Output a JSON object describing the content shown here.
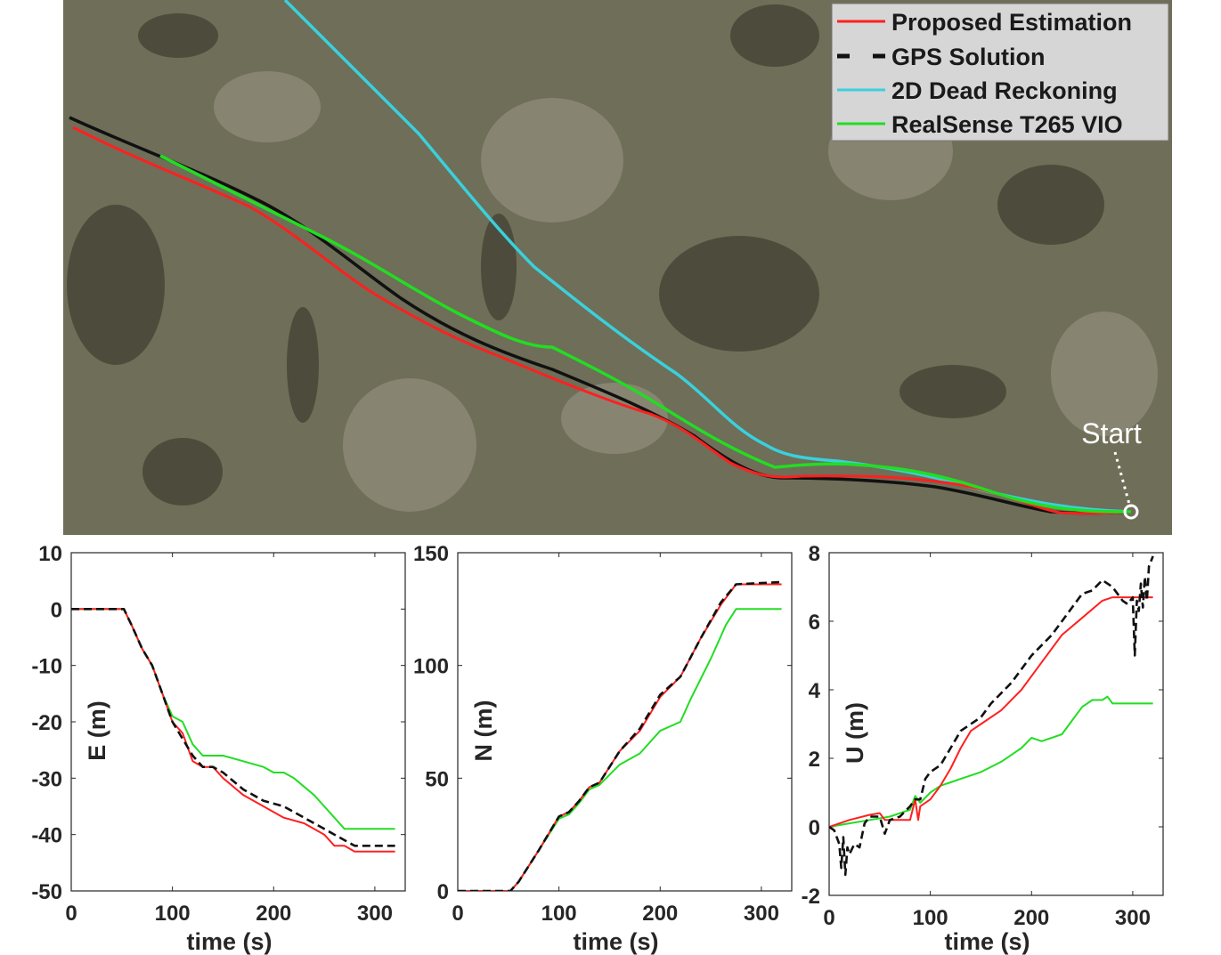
{
  "colors": {
    "proposed": "#ff2020",
    "gps": "#111111",
    "dead_reckoning": "#3ad0dc",
    "vio": "#22dd22",
    "terrain_base": "#6f6e58",
    "terrain_dark": "#3e3d30",
    "terrain_light": "#9a9987"
  },
  "map": {
    "start_label": "Start",
    "legend": [
      {
        "label": "Proposed Estimation",
        "series": "proposed"
      },
      {
        "label": "GPS Solution",
        "series": "gps"
      },
      {
        "label": "2D Dead Reckoning",
        "series": "dead_reckoning"
      },
      {
        "label": "RealSense T265 VIO",
        "series": "vio"
      }
    ]
  },
  "chart_data": [
    {
      "type": "line",
      "title": "",
      "xlabel": "time (s)",
      "ylabel": "E (m)",
      "xlim": [
        0,
        330
      ],
      "ylim": [
        -50,
        10
      ],
      "xticks": [
        0,
        100,
        200,
        300
      ],
      "yticks": [
        10,
        0,
        -10,
        -20,
        -30,
        -40,
        -50
      ],
      "grid": false,
      "series": [
        {
          "key": "gps",
          "x": [
            0,
            52,
            60,
            70,
            80,
            90,
            100,
            110,
            120,
            130,
            140,
            150,
            170,
            190,
            210,
            230,
            250,
            260,
            280,
            300,
            320
          ],
          "y": [
            0,
            0,
            -3,
            -7,
            -10,
            -15,
            -20,
            -23,
            -26,
            -28,
            -28,
            -29,
            -32,
            -34,
            -35,
            -37,
            -39,
            -40,
            -42,
            -42,
            -42
          ]
        },
        {
          "key": "proposed",
          "x": [
            0,
            52,
            60,
            70,
            80,
            90,
            100,
            110,
            120,
            130,
            140,
            150,
            170,
            190,
            210,
            230,
            250,
            260,
            270,
            280,
            300,
            320
          ],
          "y": [
            0,
            0,
            -3,
            -7,
            -10,
            -15,
            -20,
            -22,
            -27,
            -28,
            -28,
            -30,
            -33,
            -35,
            -37,
            -38,
            -40,
            -42,
            -42,
            -43,
            -43,
            -43
          ]
        },
        {
          "key": "vio",
          "x": [
            0,
            52,
            60,
            70,
            80,
            90,
            100,
            110,
            120,
            130,
            140,
            150,
            170,
            190,
            200,
            210,
            220,
            240,
            250,
            260,
            270,
            320
          ],
          "y": [
            0,
            0,
            -3,
            -7,
            -10,
            -15,
            -19,
            -20,
            -24,
            -26,
            -26,
            -26,
            -27,
            -28,
            -29,
            -29,
            -30,
            -33,
            -35,
            -37,
            -39,
            -39
          ]
        }
      ]
    },
    {
      "type": "line",
      "title": "",
      "xlabel": "time (s)",
      "ylabel": "N (m)",
      "xlim": [
        0,
        330
      ],
      "ylim": [
        0,
        150
      ],
      "xticks": [
        0,
        100,
        200,
        300
      ],
      "yticks": [
        150,
        100,
        50,
        0
      ],
      "grid": false,
      "series": [
        {
          "key": "gps",
          "x": [
            0,
            52,
            60,
            80,
            100,
            110,
            120,
            130,
            140,
            160,
            180,
            200,
            220,
            240,
            260,
            275,
            320
          ],
          "y": [
            0,
            0,
            4,
            18,
            33,
            35,
            40,
            46,
            48,
            62,
            72,
            87,
            95,
            112,
            128,
            136,
            137
          ]
        },
        {
          "key": "proposed",
          "x": [
            0,
            52,
            60,
            80,
            100,
            110,
            120,
            130,
            140,
            160,
            180,
            200,
            220,
            240,
            260,
            275,
            320
          ],
          "y": [
            0,
            0,
            4,
            18,
            33,
            35,
            40,
            46,
            48,
            62,
            71,
            86,
            95,
            112,
            127,
            136,
            136
          ]
        },
        {
          "key": "vio",
          "x": [
            0,
            52,
            60,
            80,
            100,
            110,
            120,
            130,
            140,
            160,
            180,
            200,
            220,
            230,
            250,
            265,
            275,
            320
          ],
          "y": [
            0,
            0,
            4,
            18,
            32,
            34,
            39,
            45,
            47,
            56,
            61,
            71,
            75,
            85,
            103,
            118,
            125,
            125
          ]
        }
      ]
    },
    {
      "type": "line",
      "title": "",
      "xlabel": "time (s)",
      "ylabel": "U (m)",
      "xlim": [
        0,
        330
      ],
      "ylim": [
        -2,
        8
      ],
      "xticks": [
        0,
        100,
        200,
        300
      ],
      "yticks": [
        8,
        6,
        4,
        2,
        0,
        -2
      ],
      "grid": false,
      "series": [
        {
          "key": "gps",
          "x": [
            0,
            5,
            10,
            12,
            14,
            16,
            18,
            20,
            25,
            30,
            35,
            40,
            50,
            55,
            60,
            70,
            80,
            85,
            90,
            95,
            100,
            110,
            120,
            130,
            140,
            150,
            160,
            180,
            200,
            220,
            230,
            240,
            250,
            260,
            270,
            280,
            290,
            295,
            300,
            302,
            304,
            306,
            308,
            310,
            312,
            314,
            316,
            320
          ],
          "y": [
            0,
            -0.1,
            -0.5,
            -1.2,
            -0.3,
            -1.4,
            -0.6,
            -0.8,
            -0.5,
            -0.6,
            0.1,
            0.3,
            0.3,
            -0.2,
            0.2,
            0.3,
            0.6,
            0.8,
            0.8,
            1.4,
            1.6,
            1.8,
            2.3,
            2.8,
            3.0,
            3.2,
            3.6,
            4.2,
            5.0,
            5.6,
            6.0,
            6.4,
            6.8,
            6.9,
            7.2,
            7.0,
            6.6,
            6.5,
            6.7,
            5.0,
            6.6,
            6.3,
            7.1,
            6.4,
            7.3,
            6.6,
            7.6,
            7.9
          ]
        },
        {
          "key": "proposed",
          "x": [
            0,
            20,
            40,
            50,
            55,
            80,
            85,
            88,
            90,
            100,
            110,
            120,
            130,
            140,
            150,
            170,
            190,
            210,
            230,
            250,
            270,
            280,
            290,
            320
          ],
          "y": [
            0,
            0.2,
            0.35,
            0.4,
            0.2,
            0.2,
            0.8,
            0.2,
            0.6,
            0.8,
            1.2,
            1.7,
            2.3,
            2.8,
            3.0,
            3.4,
            4.0,
            4.8,
            5.6,
            6.1,
            6.6,
            6.7,
            6.7,
            6.7
          ]
        },
        {
          "key": "vio",
          "x": [
            0,
            20,
            40,
            60,
            80,
            85,
            90,
            100,
            110,
            120,
            130,
            150,
            170,
            190,
            200,
            210,
            220,
            230,
            240,
            250,
            260,
            270,
            275,
            280,
            320
          ],
          "y": [
            0,
            0.1,
            0.2,
            0.3,
            0.5,
            0.9,
            0.7,
            1.0,
            1.2,
            1.3,
            1.4,
            1.6,
            1.9,
            2.3,
            2.6,
            2.5,
            2.6,
            2.7,
            3.1,
            3.5,
            3.7,
            3.7,
            3.8,
            3.6,
            3.6
          ]
        }
      ]
    }
  ]
}
